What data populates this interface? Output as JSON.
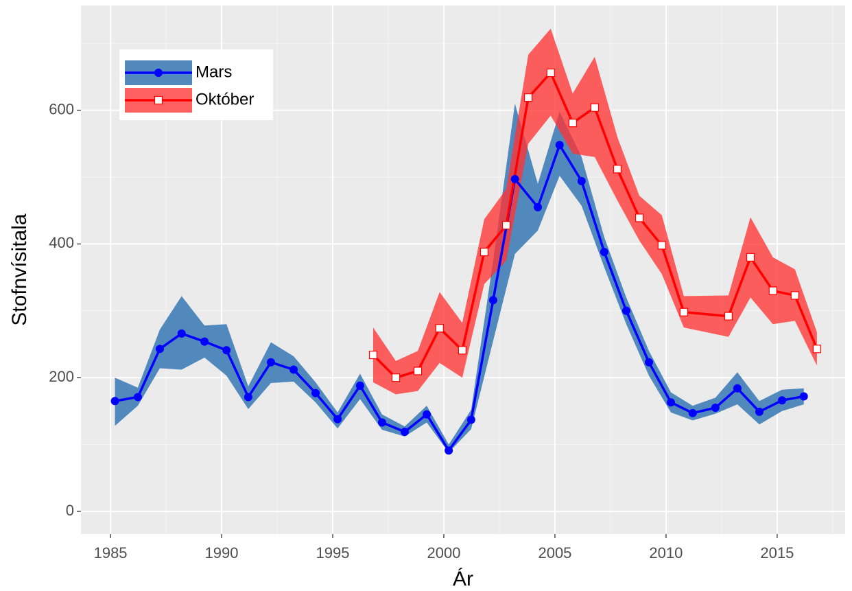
{
  "chart_data": {
    "type": "line_ribbon",
    "xlabel": "Ár",
    "ylabel": "Stofnvísitala",
    "xlim": [
      1983.67,
      2018.06
    ],
    "ylim": [
      -33.9,
      756.7
    ],
    "xticks": [
      1985,
      1990,
      1995,
      2000,
      2005,
      2010,
      2015
    ],
    "yticks": [
      0,
      200,
      400,
      600
    ],
    "grid": true,
    "legend": "top-left",
    "series": [
      {
        "name": "Mars",
        "color": "#0000ff",
        "band_color": "#4a84ba",
        "marker": "circle",
        "x": [
          1985.2,
          1986.23,
          1987.22,
          1988.2,
          1989.23,
          1990.22,
          1991.2,
          1992.22,
          1993.24,
          1994.23,
          1995.22,
          1996.23,
          1997.22,
          1998.24,
          1999.23,
          2000.22,
          2001.23,
          2002.22,
          2003.2,
          2004.23,
          2005.21,
          2006.2,
          2007.22,
          2008.21,
          2009.23,
          2010.22,
          2011.2,
          2012.22,
          2013.21,
          2014.2,
          2015.22,
          2016.2
        ],
        "values": [
          165,
          171,
          243,
          266,
          254,
          241,
          171,
          223,
          212,
          177,
          138,
          188,
          133,
          119,
          145,
          91,
          137,
          316,
          497,
          455,
          548,
          494,
          388,
          300,
          223,
          163,
          147,
          155,
          184,
          149,
          166,
          172
        ],
        "upper": [
          200,
          185,
          272,
          322,
          278,
          280,
          187,
          253,
          232,
          193,
          148,
          206,
          145,
          127,
          158,
          100,
          152,
          375,
          610,
          490,
          598,
          530,
          410,
          320,
          240,
          178,
          158,
          170,
          208,
          165,
          182,
          184
        ],
        "lower": [
          128,
          158,
          214,
          212,
          230,
          203,
          153,
          192,
          194,
          163,
          124,
          168,
          122,
          112,
          133,
          88,
          123,
          255,
          385,
          420,
          502,
          457,
          365,
          280,
          203,
          148,
          136,
          146,
          160,
          130,
          150,
          160
        ]
      },
      {
        "name": "Október",
        "color": "#ff0000",
        "band_color": "#ff3333",
        "marker": "square",
        "x": [
          1996.82,
          1997.84,
          1998.83,
          1999.81,
          2000.83,
          2001.82,
          2002.81,
          2003.8,
          2004.81,
          2005.8,
          2006.79,
          2007.81,
          2008.8,
          2009.81,
          2010.8,
          2012.81,
          2013.8,
          2014.81,
          2015.8,
          2016.79
        ],
        "values": [
          234,
          200,
          210,
          274,
          241,
          388,
          428,
          619,
          656,
          581,
          604,
          512,
          439,
          398,
          298,
          292,
          380,
          330,
          323,
          243
        ],
        "upper": [
          275,
          225,
          240,
          328,
          282,
          437,
          482,
          683,
          722,
          625,
          680,
          560,
          472,
          443,
          322,
          323,
          440,
          380,
          362,
          268
        ],
        "lower": [
          193,
          175,
          180,
          222,
          200,
          340,
          375,
          550,
          592,
          535,
          530,
          465,
          405,
          355,
          275,
          261,
          320,
          280,
          285,
          218
        ]
      }
    ]
  }
}
